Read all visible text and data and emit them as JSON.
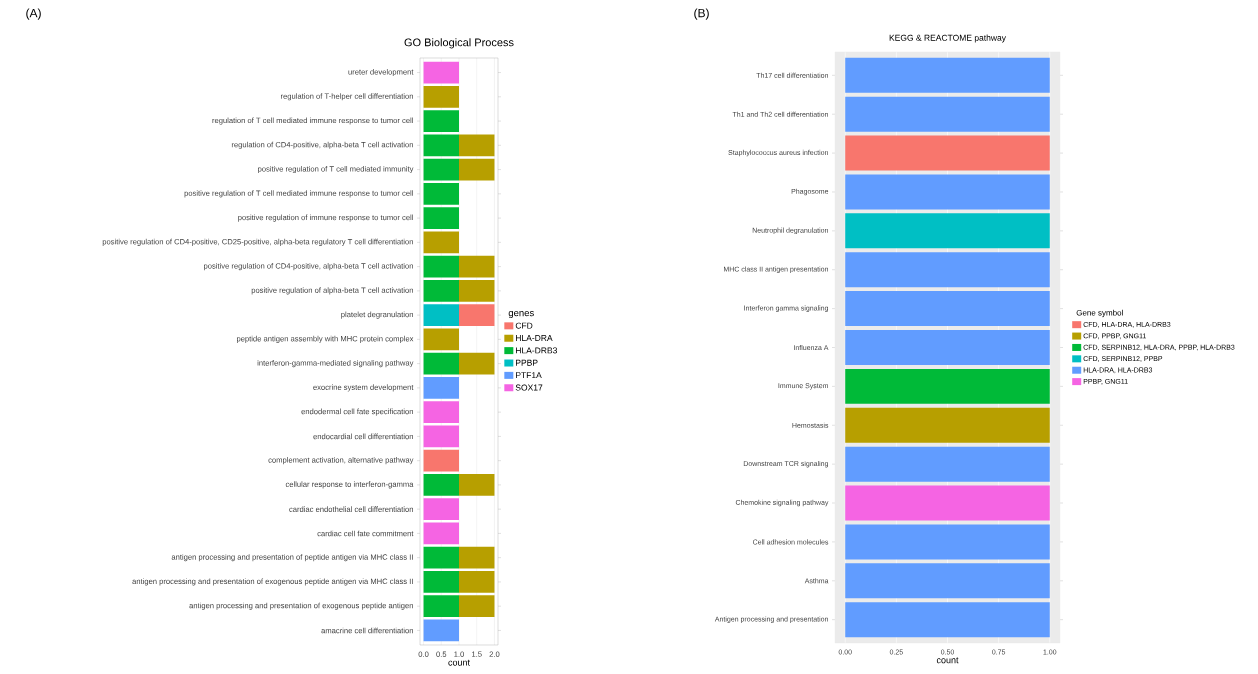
{
  "chart_data": [
    {
      "type": "bar",
      "orientation": "horizontal",
      "stacked": true,
      "title": "GO Biological Process",
      "xlabel": "count",
      "legend_title": "genes",
      "legend": "right",
      "grid": "x",
      "annotations": [
        "(A)"
      ],
      "categories": [
        "ureter development",
        "regulation of T-helper cell differentiation",
        "regulation of T cell mediated immune response to tumor cell",
        "regulation of CD4-positive, alpha-beta T cell activation",
        "positive regulation of T cell mediated immunity",
        "positive regulation of T cell mediated immune response to tumor cell",
        "positive regulation of immune response to tumor cell",
        "positive regulation of CD4-positive, CD25-positive, alpha-beta regulatory T cell differentiation",
        "positive regulation of CD4-positive, alpha-beta T cell activation",
        "positive regulation of alpha-beta T cell activation",
        "platelet degranulation",
        "peptide antigen assembly with MHC protein complex",
        "interferon-gamma-mediated signaling pathway",
        "exocrine system development",
        "endodermal cell fate specification",
        "endocardial cell differentiation",
        "complement activation, alternative pathway",
        "cellular response to interferon-gamma",
        "cardiac endothelial cell differentiation",
        "cardiac cell fate commitment",
        "antigen processing and presentation of peptide antigen via MHC class II",
        "antigen processing and presentation of exogenous peptide antigen via MHC class II",
        "antigen processing and presentation of exogenous peptide antigen",
        "amacrine cell differentiation"
      ],
      "xlim": [
        -0.1,
        2.1
      ],
      "xticks": [
        {
          "value": 0,
          "label": "0.0"
        },
        {
          "value": 0.5,
          "label": "0.5"
        },
        {
          "value": 1,
          "label": "1.0"
        },
        {
          "value": 1.5,
          "label": "1.5"
        },
        {
          "value": 2,
          "label": "2.0"
        }
      ],
      "series": [
        {
          "name": "SOX17",
          "color": "#f564e3",
          "values": [
            1,
            null,
            null,
            null,
            null,
            null,
            null,
            null,
            null,
            null,
            null,
            null,
            null,
            null,
            1,
            1,
            null,
            null,
            1,
            1,
            null,
            null,
            null,
            null
          ]
        },
        {
          "name": "PTF1A",
          "color": "#619cff",
          "values": [
            null,
            null,
            null,
            null,
            null,
            null,
            null,
            null,
            null,
            null,
            null,
            null,
            null,
            1,
            null,
            null,
            null,
            null,
            null,
            null,
            null,
            null,
            null,
            1
          ]
        },
        {
          "name": "PPBP",
          "color": "#00bfc4",
          "values": [
            null,
            null,
            null,
            null,
            null,
            null,
            null,
            null,
            null,
            null,
            1,
            null,
            null,
            null,
            null,
            null,
            null,
            null,
            null,
            null,
            null,
            null,
            null,
            null
          ]
        },
        {
          "name": "HLA-DRB3",
          "color": "#00ba38",
          "values": [
            null,
            null,
            1,
            1,
            1,
            1,
            1,
            null,
            1,
            1,
            null,
            null,
            1,
            null,
            null,
            null,
            null,
            1,
            null,
            null,
            1,
            1,
            1,
            null
          ]
        },
        {
          "name": "HLA-DRA",
          "color": "#b79f00",
          "values": [
            null,
            1,
            null,
            1,
            1,
            null,
            null,
            1,
            1,
            1,
            null,
            1,
            1,
            null,
            null,
            null,
            null,
            1,
            null,
            null,
            1,
            1,
            1,
            null
          ]
        },
        {
          "name": "CFD",
          "color": "#f8766d",
          "values": [
            null,
            null,
            null,
            null,
            null,
            null,
            null,
            null,
            null,
            null,
            1,
            null,
            null,
            null,
            null,
            null,
            1,
            null,
            null,
            null,
            null,
            null,
            null,
            null
          ]
        }
      ]
    },
    {
      "type": "bar",
      "orientation": "horizontal",
      "stacked": true,
      "title": "KEGG & REACTOME pathway",
      "xlabel": "count",
      "legend_title": "Gene symbol",
      "legend": "right",
      "grid": "x",
      "annotations": [
        "(B)"
      ],
      "categories": [
        "Th17 cell differentiation",
        "Th1 and Th2 cell differentiation",
        "Staphylococcus aureus infection",
        "Phagosome",
        "Neutrophil degranulation",
        "MHC class II antigen presentation",
        "Interferon gamma signaling",
        "Influenza A",
        "Immune System",
        "Hemostasis",
        "Downstream TCR signaling",
        "Chemokine signaling pathway",
        "Cell adhesion molecules",
        "Asthma",
        "Antigen processing and presentation"
      ],
      "xlim": [
        -0.05,
        1.05
      ],
      "xticks": [
        {
          "value": 0,
          "label": "0.00"
        },
        {
          "value": 0.25,
          "label": "0.25"
        },
        {
          "value": 0.5,
          "label": "0.50"
        },
        {
          "value": 0.75,
          "label": "0.75"
        },
        {
          "value": 1,
          "label": "1.00"
        }
      ],
      "series": [
        {
          "name": "CFD, HLA-DRA, HLA-DRB3",
          "color": "#f8766d",
          "values": [
            null,
            null,
            1,
            null,
            null,
            null,
            null,
            null,
            null,
            null,
            null,
            null,
            null,
            null,
            null
          ]
        },
        {
          "name": "CFD, PPBP, GNG11",
          "color": "#b79f00",
          "values": [
            null,
            null,
            null,
            null,
            null,
            null,
            null,
            null,
            null,
            1,
            null,
            null,
            null,
            null,
            null
          ]
        },
        {
          "name": "CFD, SERPINB12, HLA-DRA, PPBP, HLA-DRB3",
          "color": "#00ba38",
          "values": [
            null,
            null,
            null,
            null,
            null,
            null,
            null,
            null,
            1,
            null,
            null,
            null,
            null,
            null,
            null
          ]
        },
        {
          "name": "CFD, SERPINB12, PPBP",
          "color": "#00bfc4",
          "values": [
            null,
            null,
            null,
            null,
            1,
            null,
            null,
            null,
            null,
            null,
            null,
            null,
            null,
            null,
            null
          ]
        },
        {
          "name": "HLA-DRA, HLA-DRB3",
          "color": "#619cff",
          "values": [
            1,
            1,
            null,
            1,
            null,
            1,
            1,
            1,
            null,
            null,
            1,
            null,
            1,
            1,
            1
          ]
        },
        {
          "name": "PPBP, GNG11",
          "color": "#f564e3",
          "values": [
            null,
            null,
            null,
            null,
            null,
            null,
            null,
            null,
            null,
            null,
            null,
            1,
            null,
            null,
            null
          ]
        }
      ]
    }
  ]
}
